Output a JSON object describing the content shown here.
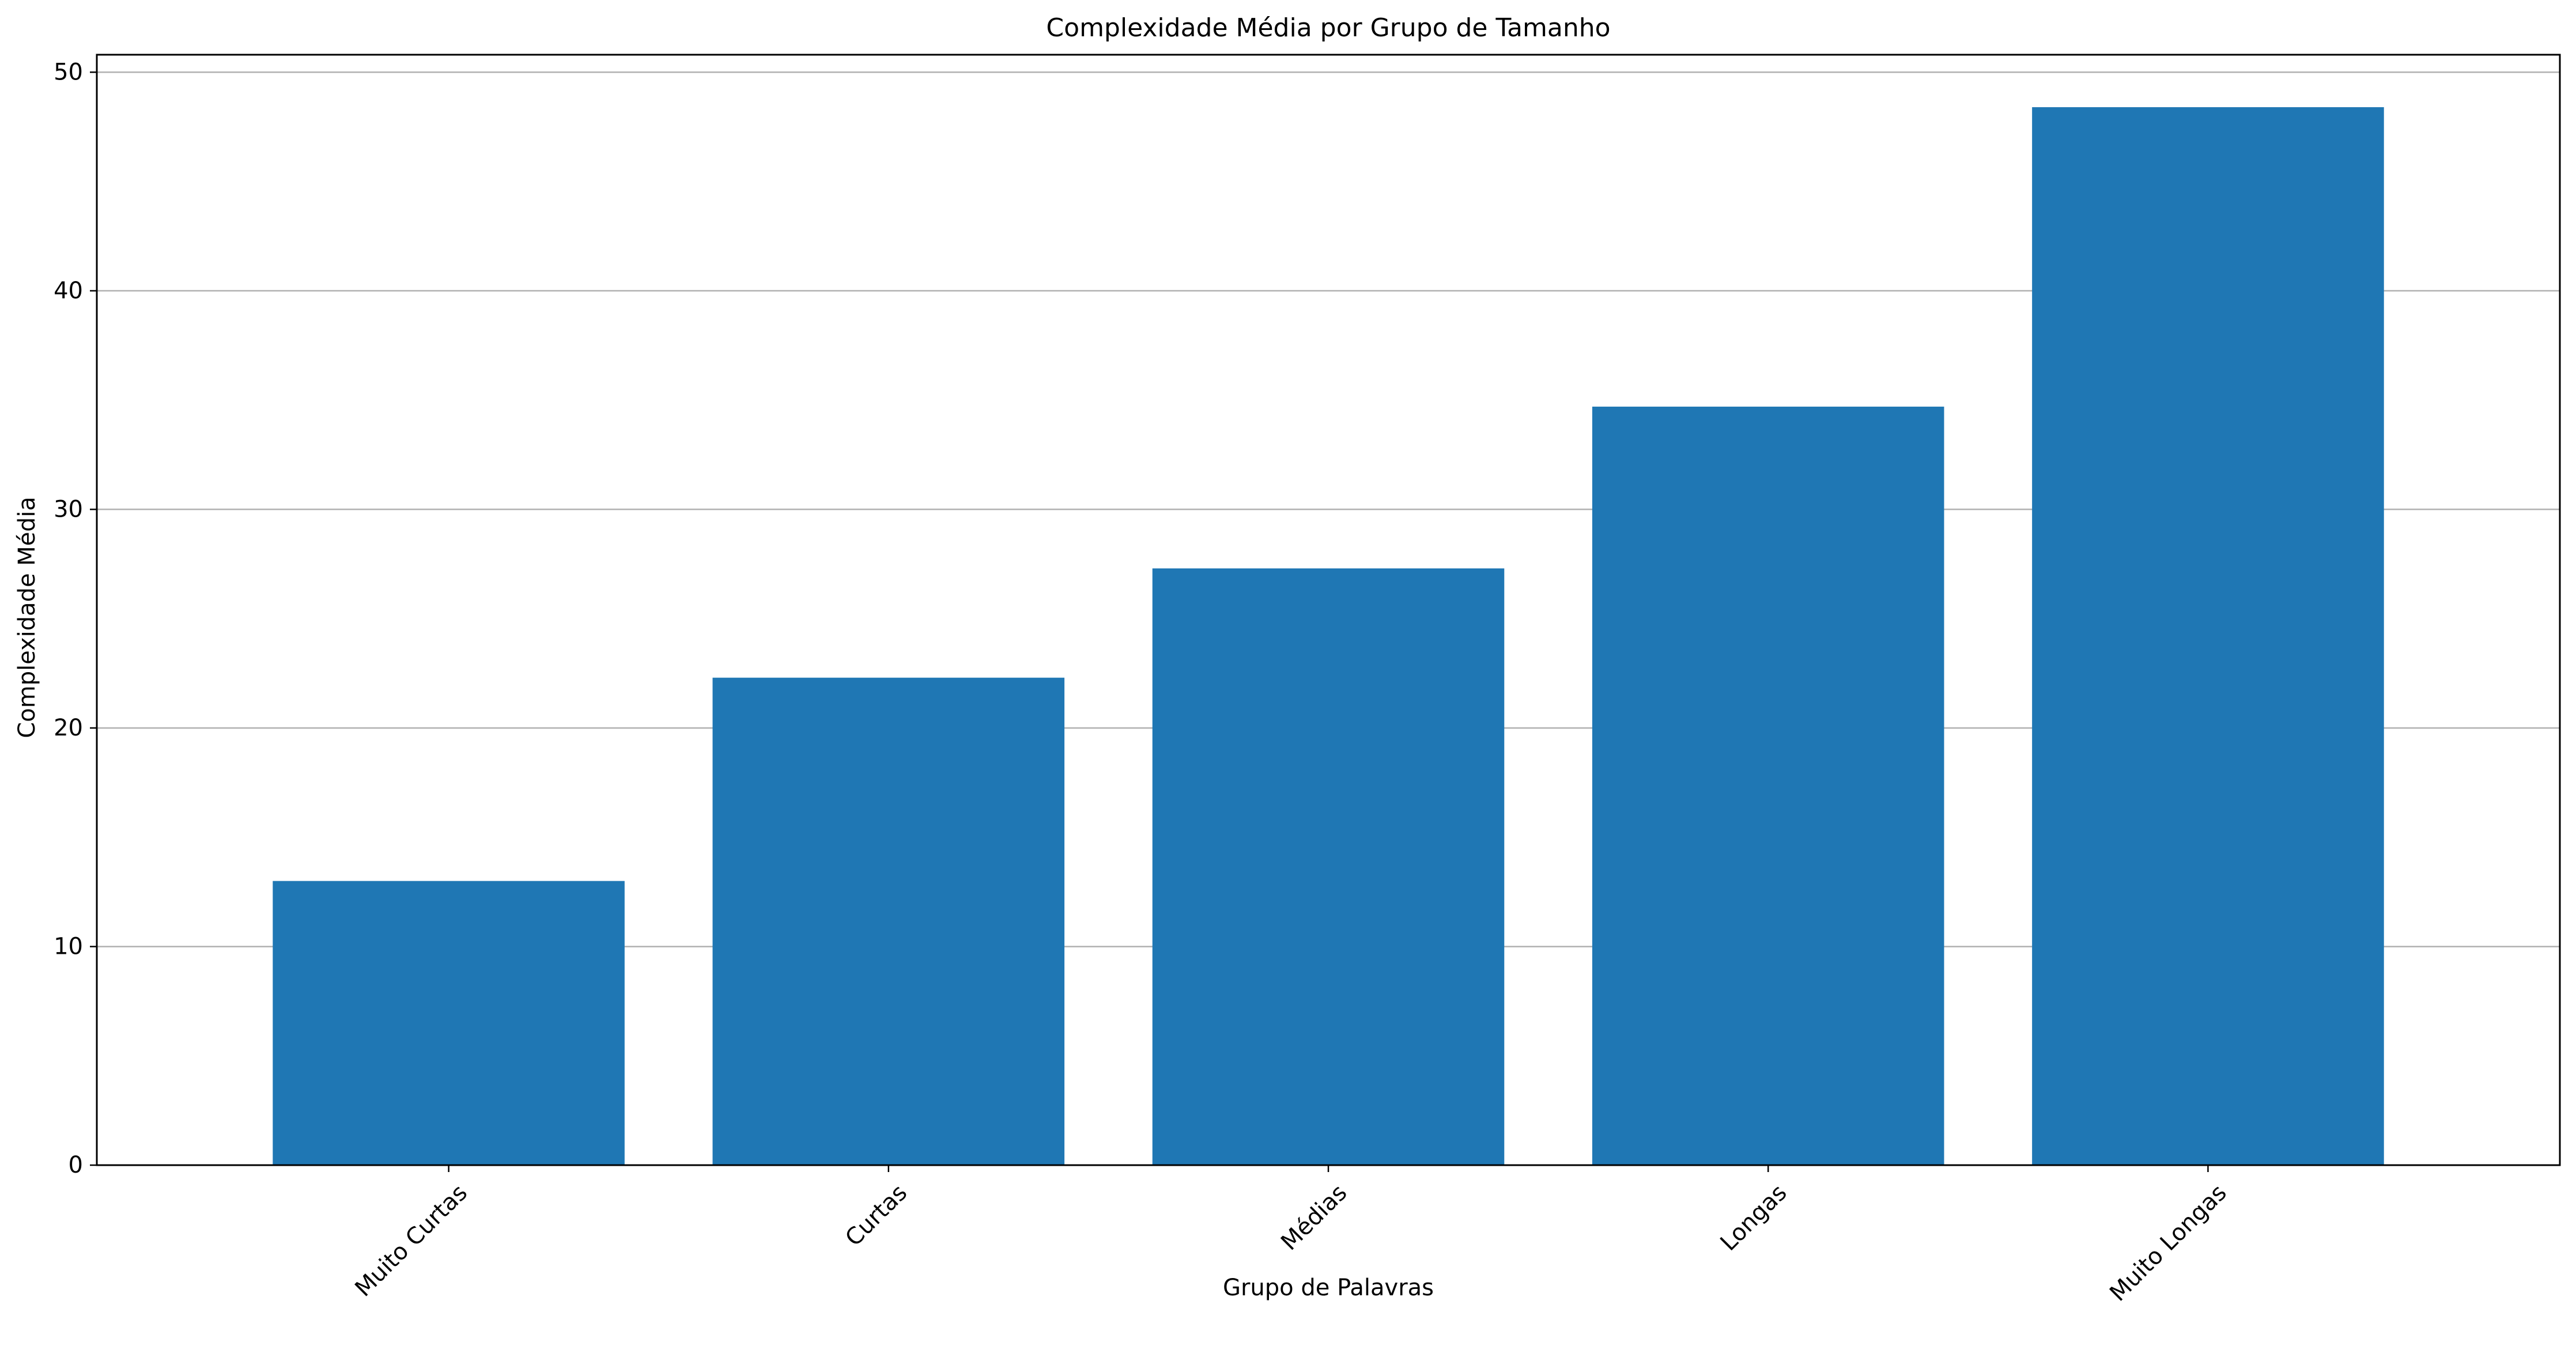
{
  "chart_data": {
    "type": "bar",
    "title": "Complexidade Média por Grupo de Tamanho",
    "xlabel": "Grupo de Palavras",
    "ylabel": "Complexidade Média",
    "categories": [
      "Muito Curtas",
      "Curtas",
      "Médias",
      "Longas",
      "Muito Longas"
    ],
    "values": [
      13.0,
      22.3,
      27.3,
      34.7,
      48.4
    ],
    "ylim": [
      0,
      50.8
    ],
    "yticks": [
      0,
      10,
      20,
      30,
      40,
      50
    ],
    "ytick_labels": [
      "0",
      "10",
      "20",
      "30",
      "40",
      "50"
    ],
    "grid": "y",
    "legend": "none",
    "bar_color": "#1f77b4",
    "grid_color": "#b0b0b0",
    "axis_color": "#000000"
  }
}
